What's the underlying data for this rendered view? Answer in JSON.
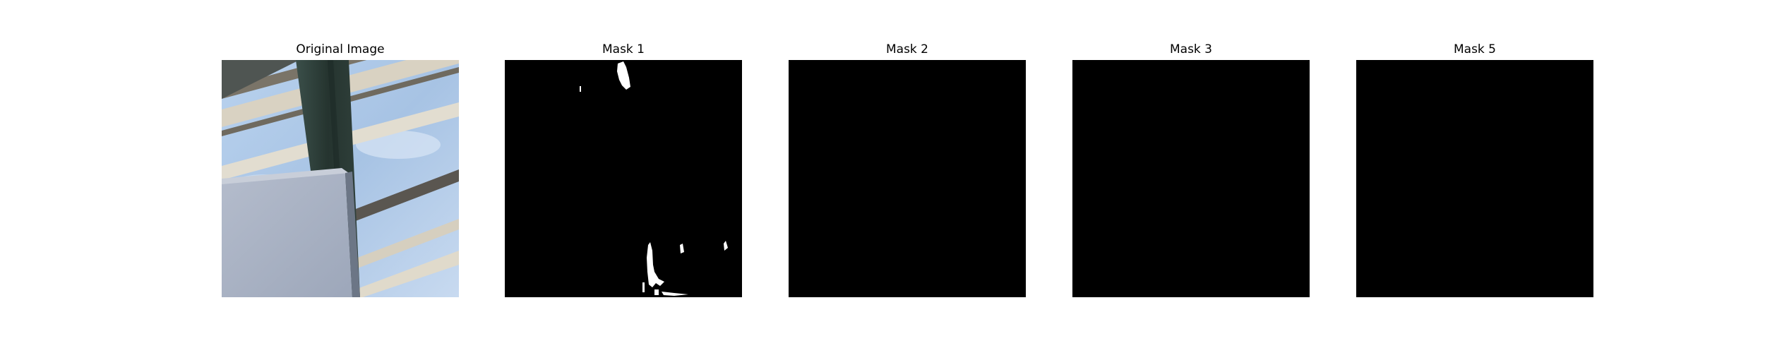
{
  "figure": {
    "panels": [
      {
        "title": "Original Image",
        "kind": "photo"
      },
      {
        "title": "Mask 1",
        "kind": "mask"
      },
      {
        "title": "Mask 2",
        "kind": "mask"
      },
      {
        "title": "Mask 3",
        "kind": "mask"
      },
      {
        "title": "Mask 5",
        "kind": "mask"
      }
    ]
  },
  "colors": {
    "background": "#ffffff",
    "mask_background": "#000000",
    "mask_foreground": "#ffffff",
    "sky": "#a9c6e6",
    "beam": "#2c3e3a",
    "panel_board": "#a9b2c4"
  }
}
